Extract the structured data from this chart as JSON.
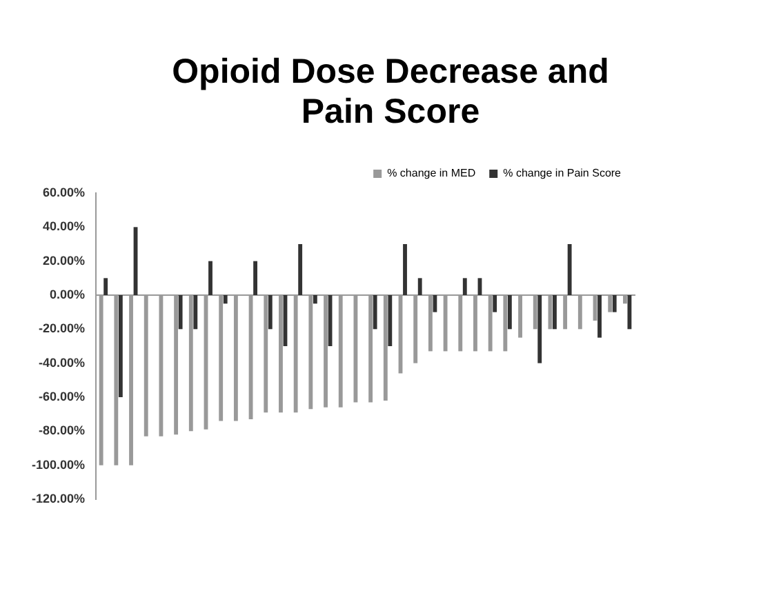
{
  "chart_data": {
    "type": "bar",
    "title": "Opioid Dose Decrease and Pain Score",
    "categories": [
      null,
      null,
      null,
      null,
      null,
      null,
      null,
      null,
      null,
      null,
      null,
      null,
      null,
      null,
      null,
      null,
      null,
      null,
      null,
      null,
      null,
      null,
      null,
      null,
      null,
      null,
      null,
      null,
      null,
      null,
      null,
      null,
      null,
      null,
      null,
      null
    ],
    "series": [
      {
        "name": "% change in MED",
        "color": "#999999",
        "values": [
          -100,
          -100,
          -100,
          -83,
          -83,
          -82,
          -80,
          -79,
          -74,
          -74,
          -73,
          -69,
          -69,
          -69,
          -67,
          -66,
          -66,
          -63,
          -63,
          -62,
          -46,
          -40,
          -33,
          -33,
          -33,
          -33,
          -33,
          -33,
          -25,
          -20,
          -20,
          -20,
          -20,
          -15,
          -10,
          -5
        ]
      },
      {
        "name": "% change in Pain Score",
        "color": "#333333",
        "values": [
          10,
          -60,
          40,
          0,
          0,
          -20,
          -20,
          20,
          -5,
          0,
          20,
          -20,
          -30,
          30,
          -5,
          -30,
          0,
          0,
          -20,
          -30,
          30,
          10,
          -10,
          0,
          10,
          10,
          -10,
          -20,
          0,
          -40,
          -20,
          30,
          0,
          -25,
          -10,
          -20
        ]
      }
    ],
    "ylim": [
      -120,
      60
    ],
    "yticks": [
      {
        "value": 60,
        "label": "60.00%"
      },
      {
        "value": 40,
        "label": "40.00%"
      },
      {
        "value": 20,
        "label": "20.00%"
      },
      {
        "value": 0,
        "label": "0.00%"
      },
      {
        "value": -20,
        "label": "-20.00%"
      },
      {
        "value": -40,
        "label": "-40.00%"
      },
      {
        "value": -60,
        "label": "-60.00%"
      },
      {
        "value": -80,
        "label": "-80.00%"
      },
      {
        "value": -100,
        "label": "-100.00%"
      },
      {
        "value": -120,
        "label": "-120.00%"
      }
    ],
    "legend": "top right"
  }
}
